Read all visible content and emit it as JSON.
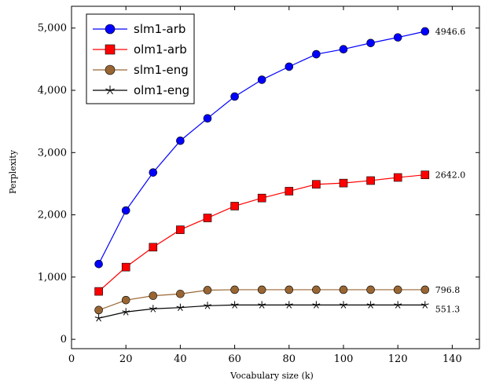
{
  "chart_data": {
    "type": "line",
    "xlabel": "Vocabulary size (k)",
    "ylabel": "Perplexity",
    "xlim": [
      0,
      150
    ],
    "ylim": [
      -150,
      5350
    ],
    "xticks": [
      0,
      20,
      40,
      60,
      80,
      100,
      120,
      140
    ],
    "yticks": [
      0,
      1000,
      2000,
      3000,
      4000,
      5000
    ],
    "ytick_labels": [
      "0",
      "1,000",
      "2,000",
      "3,000",
      "4,000",
      "5,000"
    ],
    "grid": false,
    "legend_position": "top-left",
    "x": [
      10,
      20,
      30,
      40,
      50,
      60,
      70,
      80,
      90,
      100,
      110,
      120,
      130
    ],
    "series": [
      {
        "name": "slm1-arb",
        "color": "#0000ff",
        "marker": "circle",
        "values": [
          1210,
          2070,
          2680,
          3190,
          3550,
          3900,
          4170,
          4380,
          4580,
          4660,
          4760,
          4850,
          4946.6
        ],
        "end_label": "4946.6"
      },
      {
        "name": "olm1-arb",
        "color": "#ff0000",
        "marker": "square",
        "values": [
          770,
          1160,
          1480,
          1760,
          1950,
          2140,
          2270,
          2380,
          2490,
          2510,
          2550,
          2600,
          2642.0
        ],
        "end_label": "2642.0"
      },
      {
        "name": "slm1-eng",
        "color": "#996633",
        "marker": "circle",
        "values": [
          470,
          630,
          700,
          730,
          790,
          796.8,
          796.8,
          796.8,
          796.8,
          796.8,
          796.8,
          796.8,
          796.8
        ],
        "end_label": "796.8"
      },
      {
        "name": "olm1-eng",
        "color": "#000000",
        "marker": "star",
        "values": [
          340,
          440,
          490,
          510,
          540,
          551.3,
          551.3,
          551.3,
          551.3,
          551.3,
          551.3,
          551.3,
          551.3
        ],
        "end_label": "551.3"
      }
    ]
  }
}
